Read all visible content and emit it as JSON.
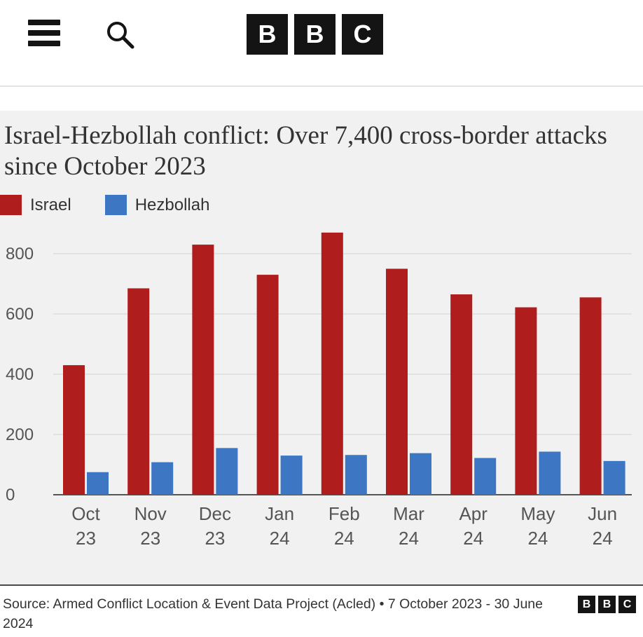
{
  "header": {
    "logo_letters": [
      "B",
      "B",
      "C"
    ]
  },
  "chart_data": {
    "type": "bar",
    "title": "Israel-Hezbollah conflict: Over 7,400 cross-border attacks since October 2023",
    "categories": [
      [
        "Oct",
        "23"
      ],
      [
        "Nov",
        "23"
      ],
      [
        "Dec",
        "23"
      ],
      [
        "Jan",
        "24"
      ],
      [
        "Feb",
        "24"
      ],
      [
        "Mar",
        "24"
      ],
      [
        "Apr",
        "24"
      ],
      [
        "May",
        "24"
      ],
      [
        "Jun",
        "24"
      ]
    ],
    "series": [
      {
        "name": "Israel",
        "color": "#b01d1d",
        "values": [
          430,
          685,
          830,
          730,
          870,
          750,
          665,
          622,
          655
        ]
      },
      {
        "name": "Hezbollah",
        "color": "#3d76c3",
        "values": [
          75,
          108,
          155,
          130,
          132,
          138,
          122,
          143,
          112
        ]
      }
    ],
    "yticks": [
      "0",
      "200",
      "400",
      "600",
      "800"
    ],
    "ylim": [
      0,
      900
    ],
    "grid": true,
    "legend": "top-left"
  },
  "footer": {
    "source": "Source: Armed Conflict Location & Event Data Project (Acled) • 7 October 2023 - 30 June 2024",
    "logo_letters": [
      "B",
      "B",
      "C"
    ]
  }
}
